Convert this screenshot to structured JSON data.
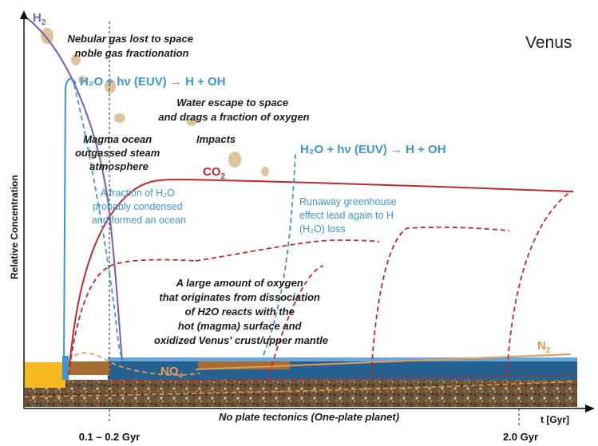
{
  "title": "Venus",
  "axis": {
    "x_label": "t [Gyr]",
    "y_label": "Relative Concentration",
    "tick_1": "0.1 – 0.2 Gyr",
    "tick_2": "2.0 Gyr",
    "bottom_caption": "No plate tectonics (One-plate planet)"
  },
  "labels": {
    "h2": "H",
    "h2_sub": "2",
    "co2": "CO",
    "co2_sub": "2",
    "n2": "N",
    "n2_sub": "2",
    "no4": "NO",
    "no4_sub": "4"
  },
  "annotations": {
    "nebular_1": "Nebular gas lost to space",
    "nebular_2": "noble gas fractionation",
    "photolysis_1": "H₂O + hν (EUV) → H + OH",
    "photolysis_2": "H₂O + hν (EUV) → H + OH",
    "water_escape_1": "Water  escape to space",
    "water_escape_2": "and drags a fraction of oxygen",
    "magma_1": "Magma ocean",
    "magma_2": "outgassed steam",
    "magma_3": "atmosphere",
    "impacts": "Impacts",
    "fraction_1": "A fraction of H₂O",
    "fraction_2": "probably condensed",
    "fraction_3": "and formed an ocean",
    "runaway_1": "Runaway greenhouse",
    "runaway_2": "effect lead again to H",
    "runaway_3": "(H₂O) loss",
    "oxygen_1": "A large amount of oxygen",
    "oxygen_2": "that originates from dissociation",
    "oxygen_3": "of H2O reacts with the",
    "oxygen_4": "hot (magma) surface and",
    "oxygen_5": "oxidized Venus' crust/upper mantle"
  },
  "colors": {
    "h2": "#7b5cb3",
    "h2o": "#3e95d6",
    "co2": "#c0282d",
    "n2": "#e59b55",
    "crust_brown": "#a66d32",
    "ocean_blue": "#25628f",
    "core_yellow": "#f6b91f",
    "rock": "#6b5238",
    "impact_rock": "#dfc39a"
  }
}
